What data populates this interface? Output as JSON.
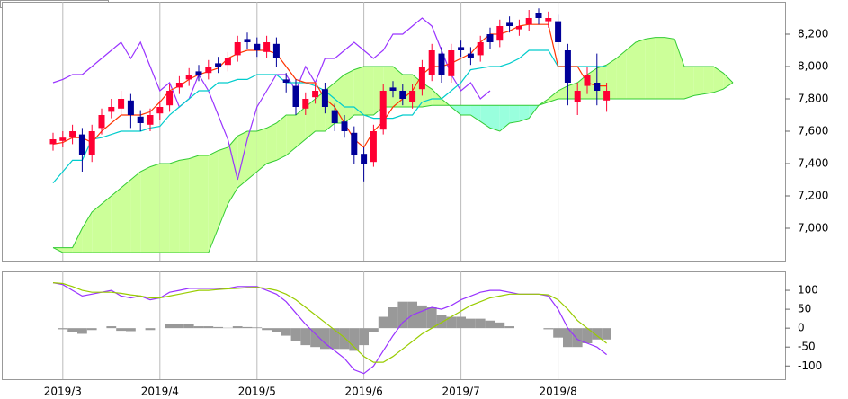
{
  "chart_data": [
    {
      "type": "candlestick",
      "ylim": [
        6800,
        8400
      ],
      "yticks": [
        {
          "value": 7000,
          "label": "7,000"
        },
        {
          "value": 7200,
          "label": "7,200"
        },
        {
          "value": 7400,
          "label": "7,400"
        },
        {
          "value": 7600,
          "label": "7,600"
        },
        {
          "value": 7800,
          "label": "7,800"
        },
        {
          "value": 8000,
          "label": "8,000"
        },
        {
          "value": 8200,
          "label": "8,200"
        }
      ],
      "up_color": "#ff0033",
      "down_color": "#000099",
      "open": [
        7520,
        7540,
        7560,
        7580,
        7450,
        7620,
        7720,
        7740,
        7790,
        7690,
        7640,
        7710,
        7760,
        7870,
        7920,
        7970,
        7960,
        8020,
        8010,
        8070,
        8170,
        8140,
        8090,
        8140,
        7920,
        7880,
        7740,
        7810,
        7860,
        7730,
        7660,
        7590,
        7460,
        7410,
        7610,
        7870,
        7850,
        7780,
        7860,
        7950,
        8080,
        7940,
        8120,
        8080,
        8070,
        8200,
        8160,
        8270,
        8230,
        8260,
        8330,
        8280,
        8280,
        8100,
        7780,
        7880,
        7900,
        7790,
        null,
        null,
        null,
        null,
        null,
        null,
        null,
        null,
        null,
        null,
        null,
        null,
        null
      ],
      "high": [
        7590,
        7600,
        7640,
        7620,
        7640,
        7740,
        7800,
        7850,
        7830,
        7730,
        7740,
        7790,
        7890,
        7940,
        7990,
        8010,
        8040,
        8060,
        8090,
        8190,
        8210,
        8180,
        8190,
        8180,
        7960,
        7920,
        7840,
        7890,
        7900,
        7770,
        7700,
        7630,
        7500,
        7640,
        7890,
        7910,
        7890,
        7890,
        8040,
        8140,
        8120,
        8140,
        8160,
        8120,
        8190,
        8240,
        8290,
        8310,
        8290,
        8350,
        8360,
        8340,
        8320,
        8140,
        7900,
        8000,
        8080,
        7900,
        null,
        null,
        null,
        null,
        null,
        null,
        null,
        null,
        null,
        null,
        null,
        null,
        null
      ],
      "low": [
        7480,
        7500,
        7520,
        7350,
        7410,
        7580,
        7680,
        7700,
        7620,
        7600,
        7600,
        7670,
        7720,
        7830,
        7880,
        7910,
        7920,
        7960,
        7970,
        8030,
        8110,
        8060,
        8050,
        8000,
        7840,
        7700,
        7700,
        7770,
        7710,
        7600,
        7560,
        7400,
        7290,
        7380,
        7580,
        7810,
        7760,
        7740,
        7820,
        7910,
        7900,
        7900,
        8060,
        8010,
        8030,
        8110,
        8120,
        8210,
        8190,
        8220,
        8260,
        8240,
        8100,
        7760,
        7700,
        7830,
        7760,
        7720,
        null,
        null,
        null,
        null,
        null,
        null,
        null,
        null,
        null,
        null,
        null,
        null,
        null
      ],
      "close": [
        7550,
        7560,
        7600,
        7450,
        7600,
        7700,
        7750,
        7800,
        7700,
        7650,
        7700,
        7750,
        7850,
        7900,
        7950,
        7950,
        8000,
        8000,
        8050,
        8150,
        8150,
        8100,
        8150,
        8050,
        7900,
        7750,
        7800,
        7850,
        7750,
        7650,
        7600,
        7450,
        7400,
        7600,
        7850,
        7850,
        7800,
        7850,
        8000,
        8100,
        7950,
        8100,
        8100,
        8050,
        8150,
        8150,
        8250,
        8250,
        8250,
        8300,
        8300,
        8300,
        8150,
        7900,
        7850,
        7950,
        7850,
        7850,
        null,
        null,
        null,
        null,
        null,
        null,
        null,
        null,
        null,
        null,
        null,
        null,
        null
      ],
      "cloud": {
        "up_color": "#ccff99",
        "down_color": "#99ffdd",
        "line_color": "#33cc33",
        "span_a": [
          6880,
          6880,
          6880,
          7000,
          7100,
          7150,
          7200,
          7250,
          7300,
          7350,
          7380,
          7400,
          7400,
          7420,
          7430,
          7450,
          7450,
          7480,
          7500,
          7570,
          7600,
          7600,
          7620,
          7650,
          7700,
          7700,
          7750,
          7800,
          7850,
          7900,
          7950,
          7980,
          8000,
          8000,
          8000,
          8000,
          7950,
          7950,
          7900,
          7860,
          7800,
          7750,
          7700,
          7700,
          7660,
          7620,
          7600,
          7650,
          7660,
          7680,
          7760,
          7800,
          7850,
          7880,
          7900,
          7950,
          7990,
          8010,
          8050,
          8100,
          8150,
          8170,
          8180,
          8180,
          8170,
          8000,
          8000,
          8000,
          8000,
          7960,
          7900
        ],
        "span_b": [
          6880,
          6850,
          6850,
          6850,
          6850,
          6850,
          6850,
          6850,
          6850,
          6850,
          6850,
          6850,
          6850,
          6850,
          6850,
          6850,
          6850,
          7000,
          7150,
          7250,
          7300,
          7350,
          7400,
          7420,
          7450,
          7500,
          7550,
          7600,
          7600,
          7650,
          7650,
          7700,
          7700,
          7700,
          7750,
          7750,
          7750,
          7750,
          7750,
          7760,
          7760,
          7760,
          7760,
          7760,
          7760,
          7760,
          7760,
          7760,
          7760,
          7760,
          7760,
          7780,
          7800,
          7800,
          7800,
          7800,
          7800,
          7800,
          7800,
          7800,
          7800,
          7800,
          7800,
          7800,
          7800,
          7800,
          7820,
          7830,
          7840,
          7860,
          7900
        ]
      },
      "series": [
        {
          "color": "#9933ff",
          "values": [
            7900,
            7920,
            7950,
            7950,
            8000,
            8050,
            8100,
            8150,
            8050,
            8150,
            8000,
            7850,
            7900,
            7750,
            7800,
            7950,
            7850,
            7700,
            7550,
            7300,
            7550,
            7750,
            7850,
            7950,
            7950,
            7850,
            8000,
            7900,
            8050,
            8050,
            8100,
            8150,
            8100,
            8050,
            8100,
            8200,
            8200,
            8250,
            8300,
            8250,
            8100,
            7950,
            7850,
            7900,
            7800,
            7850,
            null,
            null,
            null,
            null,
            null,
            null,
            null,
            null,
            null,
            null,
            null,
            null,
            null,
            null,
            null,
            null,
            null,
            null,
            null,
            null,
            null,
            null,
            null,
            null,
            null
          ]
        },
        {
          "color": "#00cccc",
          "values": [
            7280,
            7350,
            7420,
            7420,
            7550,
            7560,
            7580,
            7600,
            7600,
            7600,
            7620,
            7630,
            7700,
            7750,
            7800,
            7850,
            7850,
            7900,
            7900,
            7920,
            7920,
            7950,
            7950,
            7950,
            7900,
            7900,
            7900,
            7880,
            7850,
            7800,
            7750,
            7750,
            7700,
            7680,
            7680,
            7680,
            7700,
            7700,
            7780,
            7800,
            7800,
            7850,
            7900,
            7980,
            7990,
            8000,
            8000,
            8020,
            8050,
            8100,
            8100,
            8100,
            8000,
            8000,
            8000,
            8000,
            8000,
            8000,
            null,
            null,
            null,
            null,
            null,
            null,
            null,
            null,
            null,
            null,
            null,
            null,
            null
          ]
        },
        {
          "color": "#ff3300",
          "values": [
            7520,
            7530,
            7560,
            7560,
            7530,
            7600,
            7650,
            7700,
            7700,
            7700,
            7720,
            7780,
            7850,
            7880,
            7920,
            7950,
            7970,
            7990,
            8050,
            8080,
            8100,
            8100,
            8100,
            8080,
            8000,
            7920,
            7900,
            7900,
            7800,
            7750,
            7650,
            7550,
            7500,
            7600,
            7660,
            7750,
            7800,
            7850,
            7950,
            8000,
            8000,
            8020,
            8050,
            8080,
            8150,
            8200,
            8200,
            8220,
            8250,
            8260,
            8260,
            8260,
            8000,
            8000,
            8000,
            7900,
            7880,
            7880,
            null,
            null,
            null,
            null,
            null,
            null,
            null,
            null,
            null,
            null,
            null,
            null,
            null
          ]
        }
      ]
    },
    {
      "type": "macd",
      "ylim": [
        -135,
        150
      ],
      "yticks": [
        -100,
        -50,
        0,
        50,
        100
      ],
      "categories": [
        null,
        "2019/3",
        null,
        null,
        null,
        null,
        null,
        null,
        null,
        null,
        null,
        "2019/4",
        null,
        null,
        null,
        null,
        null,
        null,
        null,
        null,
        null,
        "2019/5",
        null,
        null,
        null,
        null,
        null,
        null,
        null,
        null,
        null,
        null,
        "2019/6",
        null,
        null,
        null,
        null,
        null,
        null,
        null,
        null,
        null,
        "2019/7",
        null,
        null,
        null,
        null,
        null,
        null,
        null,
        null,
        null,
        "2019/8",
        null,
        null,
        null,
        null,
        null,
        null,
        null,
        null,
        null,
        null,
        null,
        null,
        null,
        null,
        null,
        null,
        null,
        null
      ],
      "bars": {
        "color": "#999999",
        "values": [
          0,
          -3,
          -10,
          -15,
          -5,
          0,
          5,
          -7,
          -8,
          0,
          -5,
          0,
          10,
          10,
          10,
          5,
          5,
          3,
          1,
          5,
          3,
          2,
          -5,
          -10,
          -20,
          -35,
          -45,
          -50,
          -55,
          -55,
          -55,
          -60,
          -45,
          -10,
          30,
          55,
          70,
          70,
          60,
          55,
          35,
          30,
          30,
          25,
          25,
          20,
          15,
          5,
          0,
          0,
          0,
          -3,
          -25,
          -50,
          -50,
          -40,
          -30,
          -30,
          null,
          null,
          null,
          null,
          null,
          null,
          null,
          null,
          null,
          null,
          null,
          null,
          null
        ]
      },
      "series": [
        {
          "color": "#9933ff",
          "values": [
            120,
            115,
            100,
            85,
            90,
            95,
            100,
            85,
            80,
            85,
            75,
            80,
            95,
            100,
            105,
            105,
            105,
            105,
            105,
            110,
            110,
            110,
            100,
            90,
            70,
            40,
            10,
            -15,
            -40,
            -60,
            -80,
            -110,
            -120,
            -100,
            -60,
            -20,
            15,
            35,
            45,
            55,
            50,
            60,
            75,
            85,
            95,
            100,
            100,
            95,
            90,
            90,
            90,
            85,
            50,
            0,
            -30,
            -40,
            -50,
            -70,
            null,
            null,
            null,
            null,
            null,
            null,
            null,
            null,
            null,
            null,
            null,
            null,
            null
          ]
        },
        {
          "color": "#99cc00",
          "values": [
            120,
            118,
            110,
            100,
            95,
            95,
            95,
            92,
            88,
            85,
            80,
            80,
            85,
            90,
            95,
            100,
            100,
            102,
            104,
            105,
            107,
            108,
            105,
            100,
            90,
            75,
            55,
            35,
            15,
            -5,
            -25,
            -50,
            -75,
            -90,
            -90,
            -75,
            -55,
            -35,
            -15,
            0,
            15,
            30,
            45,
            60,
            70,
            80,
            85,
            90,
            90,
            90,
            90,
            88,
            75,
            50,
            20,
            0,
            -20,
            -40,
            null,
            null,
            null,
            null,
            null,
            null,
            null,
            null,
            null,
            null,
            null,
            null,
            null
          ]
        }
      ]
    }
  ]
}
